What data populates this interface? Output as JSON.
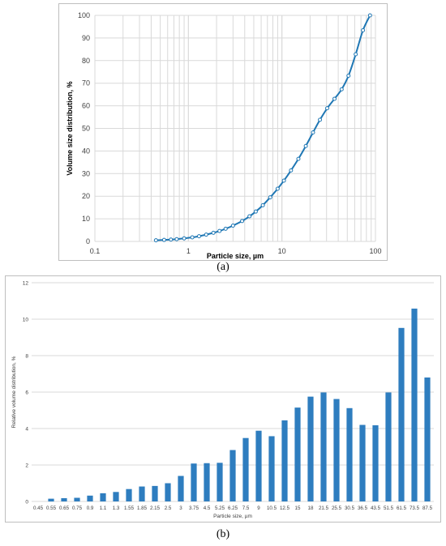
{
  "figure": {
    "caption_a": "(a)",
    "caption_b": "(b)"
  },
  "colors": {
    "series": "#1f77b4",
    "grid": "#d9d9d9",
    "axis_text": "#404040",
    "bar": "#2e7dbf"
  },
  "chart_data": [
    {
      "type": "line",
      "title": "",
      "xlabel": "Particle size, µm",
      "ylabel": "Volume size distribution, %",
      "xscale": "log",
      "xlim": [
        0.1,
        100
      ],
      "ylim": [
        0,
        100
      ],
      "xticks": [
        "0.1",
        "1",
        "10",
        "100"
      ],
      "yticks": [
        "0",
        "10",
        "20",
        "30",
        "40",
        "50",
        "60",
        "70",
        "80",
        "90",
        "100"
      ],
      "grid": true,
      "markers": "circle",
      "series": [
        {
          "x": [
            0.45,
            0.55,
            0.65,
            0.75,
            0.9,
            1.1,
            1.3,
            1.55,
            1.85,
            2.15,
            2.5,
            3,
            3.75,
            4.5,
            5.25,
            6.25,
            7.5,
            9,
            10.5,
            12.5,
            15,
            18,
            21.5,
            25.5,
            30.5,
            36.5,
            43.5,
            51.5,
            61.5,
            73.5,
            87.5
          ],
          "y": [
            0.5,
            0.65,
            0.8,
            1.0,
            1.35,
            1.8,
            2.3,
            3.0,
            3.8,
            4.6,
            5.6,
            7.0,
            9.0,
            11.1,
            13.2,
            16.0,
            19.5,
            23.3,
            26.9,
            31.4,
            36.5,
            42.2,
            48.2,
            53.8,
            58.9,
            63.1,
            67.3,
            73.3,
            82.8,
            93.4,
            100.0
          ]
        }
      ]
    },
    {
      "type": "bar",
      "title": "",
      "xlabel": "Particle size, µm",
      "ylabel": "Relative volume distribution, %",
      "ylim": [
        0,
        12
      ],
      "yticks": [
        "0",
        "2",
        "4",
        "6",
        "8",
        "10",
        "12"
      ],
      "grid": true,
      "categories": [
        "0.45",
        "0.55",
        "0.65",
        "0.75",
        "0.9",
        "1.1",
        "1.3",
        "1.55",
        "1.85",
        "2.15",
        "2.5",
        "3",
        "3.75",
        "4.5",
        "5.25",
        "6.25",
        "7.5",
        "9",
        "10.5",
        "12.5",
        "15",
        "18",
        "21.5",
        "25.5",
        "30.5",
        "36.5",
        "43.5",
        "51.5",
        "61.5",
        "73.5",
        "87.5"
      ],
      "values": [
        0.0,
        0.15,
        0.18,
        0.2,
        0.32,
        0.45,
        0.52,
        0.68,
        0.82,
        0.85,
        1.0,
        1.4,
        2.08,
        2.1,
        2.12,
        2.82,
        3.48,
        3.88,
        3.58,
        4.45,
        5.15,
        5.75,
        5.98,
        5.62,
        5.12,
        4.2,
        4.18,
        5.98,
        9.52,
        10.58,
        6.8
      ]
    }
  ]
}
